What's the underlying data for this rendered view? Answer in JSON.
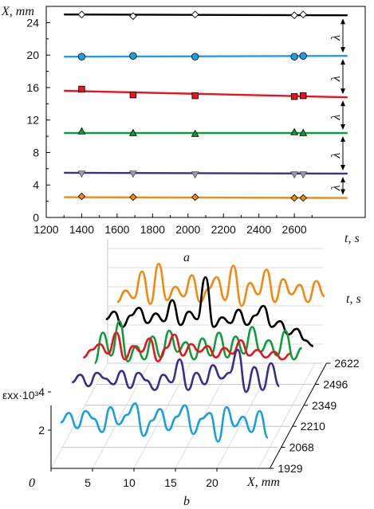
{
  "chart_data": [
    {
      "type": "line",
      "panel_label": "a",
      "xlabel": "t, s",
      "ylabel": "X, mm",
      "xlim": [
        1200,
        3000
      ],
      "ylim": [
        0,
        26
      ],
      "x_ticks": [
        1200,
        1400,
        1600,
        1800,
        2000,
        2200,
        2400,
        2600
      ],
      "y_ticks": [
        0,
        4,
        8,
        12,
        16,
        20,
        24
      ],
      "spacing_label": "λ",
      "series": [
        {
          "marker": "diamond-open",
          "color": "#000000",
          "line": [
            [
              1300,
              25.0
            ],
            [
              2900,
              24.9
            ]
          ],
          "points": [
            [
              1400,
              25.0
            ],
            [
              1690,
              24.8
            ],
            [
              2040,
              25.0
            ],
            [
              2600,
              24.9
            ],
            [
              2650,
              25.0
            ]
          ]
        },
        {
          "marker": "circle",
          "color": "#1f9fe0",
          "line": [
            [
              1300,
              19.8
            ],
            [
              2900,
              19.9
            ]
          ],
          "points": [
            [
              1400,
              19.8
            ],
            [
              1690,
              19.9
            ],
            [
              2040,
              19.8
            ],
            [
              2600,
              19.8
            ],
            [
              2650,
              19.9
            ]
          ]
        },
        {
          "marker": "square",
          "color": "#e8141e",
          "line": [
            [
              1300,
              15.6
            ],
            [
              2900,
              14.8
            ]
          ],
          "points": [
            [
              1400,
              15.8
            ],
            [
              1690,
              15.1
            ],
            [
              2040,
              15.0
            ],
            [
              2600,
              14.9
            ],
            [
              2650,
              15.0
            ]
          ]
        },
        {
          "marker": "triangle-up",
          "color": "#0f9d3a",
          "line": [
            [
              1300,
              10.4
            ],
            [
              2900,
              10.4
            ]
          ],
          "points": [
            [
              1400,
              10.6
            ],
            [
              1690,
              10.4
            ],
            [
              2040,
              10.3
            ],
            [
              2600,
              10.5
            ],
            [
              2650,
              10.4
            ]
          ]
        },
        {
          "marker": "triangle-down",
          "color": "#3d2d8c",
          "line": [
            [
              1300,
              5.5
            ],
            [
              2900,
              5.4
            ]
          ],
          "points": [
            [
              1400,
              5.4
            ],
            [
              1690,
              5.4
            ],
            [
              2040,
              5.3
            ],
            [
              2600,
              5.3
            ],
            [
              2650,
              5.3
            ]
          ]
        },
        {
          "marker": "diamond",
          "color": "#f08a10",
          "line": [
            [
              1300,
              2.5
            ],
            [
              2900,
              2.4
            ]
          ],
          "points": [
            [
              1400,
              2.6
            ],
            [
              1690,
              2.5
            ],
            [
              2040,
              2.5
            ],
            [
              2600,
              2.4
            ],
            [
              2650,
              2.4
            ]
          ]
        }
      ]
    },
    {
      "type": "line",
      "panel_label": "b",
      "xlabel": "X, mm",
      "ylabel": "εxx·10³",
      "zlabel": "t, s",
      "x_ticks": [
        0,
        5,
        10,
        15,
        20
      ],
      "y_ticks": [
        2,
        4
      ],
      "t_ticks": [
        1929,
        2068,
        2210,
        2349,
        2496,
        2622
      ],
      "series": [
        {
          "t": 1929,
          "color": "#1aa0dc",
          "x": [
            0,
            1,
            2,
            3,
            4,
            5,
            6,
            7,
            8,
            9,
            10,
            11,
            12,
            13,
            14,
            15,
            16,
            17,
            18,
            19,
            20,
            21,
            22,
            23,
            24,
            25
          ],
          "values": [
            2.4,
            2.9,
            2.1,
            3.0,
            2.6,
            1.9,
            3.2,
            2.3,
            2.8,
            3.4,
            1.7,
            2.5,
            3.1,
            2.0,
            2.7,
            3.3,
            1.8,
            2.6,
            2.9,
            1.4,
            3.2,
            2.2,
            2.7,
            1.9,
            3.0,
            1.6
          ]
        },
        {
          "t": 2068,
          "color": "#3d2d8c",
          "x": [
            0,
            1,
            2,
            3,
            4,
            5,
            6,
            7,
            8,
            9,
            10,
            11,
            12,
            13,
            14,
            15,
            16,
            17,
            18,
            19,
            20,
            21,
            22,
            23,
            24,
            25
          ],
          "values": [
            3.4,
            3.8,
            3.2,
            3.9,
            3.6,
            3.3,
            4.0,
            3.1,
            3.9,
            3.5,
            3.0,
            3.8,
            3.4,
            4.6,
            3.0,
            3.9,
            3.3,
            4.3,
            3.6,
            3.9,
            5.1,
            2.9,
            4.2,
            3.0,
            4.4,
            3.2
          ]
        },
        {
          "t": 2210,
          "color": "#e8141e",
          "x": [
            0,
            1,
            2,
            3,
            4,
            5,
            6,
            7,
            8,
            9,
            10,
            11,
            12,
            13,
            14,
            15,
            16,
            17,
            18,
            19,
            20,
            21,
            22,
            23,
            24,
            25
          ],
          "values": [
            3.6,
            4.0,
            4.3,
            3.8,
            4.9,
            3.5,
            4.2,
            3.9,
            4.6,
            3.4,
            4.1,
            4.8,
            3.7,
            4.3,
            3.9,
            4.2,
            3.6,
            4.1,
            3.8,
            4.5,
            3.7,
            4.0,
            3.6,
            3.9,
            3.5,
            3.8
          ]
        },
        {
          "t": 2349,
          "color": "#0f9d3a",
          "x": [
            0,
            1,
            2,
            3,
            4,
            5,
            6,
            7,
            8,
            9,
            10,
            11,
            12,
            13,
            14,
            15,
            16,
            17,
            18,
            19,
            20,
            21,
            22,
            23,
            24,
            25
          ],
          "values": [
            2.2,
            3.8,
            2.6,
            4.4,
            2.3,
            3.1,
            2.4,
            3.6,
            2.5,
            3.9,
            2.8,
            3.3,
            2.4,
            3.5,
            2.6,
            3.8,
            2.5,
            3.6,
            2.7,
            4.1,
            2.8,
            3.4,
            2.6,
            3.9,
            2.4,
            3.0
          ]
        },
        {
          "t": 2496,
          "color": "#000000",
          "x": [
            0,
            1,
            2,
            3,
            4,
            5,
            6,
            7,
            8,
            9,
            10,
            11,
            12,
            13,
            14,
            15,
            16,
            17,
            18,
            19,
            20,
            21,
            22,
            23,
            24,
            25
          ],
          "values": [
            3.4,
            3.8,
            3.0,
            3.6,
            4.0,
            3.2,
            3.7,
            3.3,
            4.4,
            3.1,
            3.8,
            3.4,
            5.6,
            3.0,
            3.5,
            3.2,
            3.9,
            3.1,
            3.6,
            4.1,
            3.0,
            3.3,
            2.6,
            2.9,
            2.3,
            2.0
          ]
        },
        {
          "t": 2622,
          "color": "#f08a10",
          "x": [
            0,
            1,
            2,
            3,
            4,
            5,
            6,
            7,
            8,
            9,
            10,
            11,
            12,
            13,
            14,
            15,
            16,
            17,
            18,
            19,
            20,
            21,
            22,
            23,
            24,
            25
          ],
          "values": [
            3.2,
            3.8,
            3.4,
            4.8,
            3.1,
            5.2,
            3.3,
            4.0,
            3.5,
            4.6,
            3.2,
            3.9,
            4.5,
            3.3,
            5.1,
            3.0,
            4.2,
            3.6,
            4.9,
            3.2,
            4.4,
            3.6,
            4.1,
            3.2,
            4.3,
            3.5
          ]
        }
      ]
    }
  ]
}
